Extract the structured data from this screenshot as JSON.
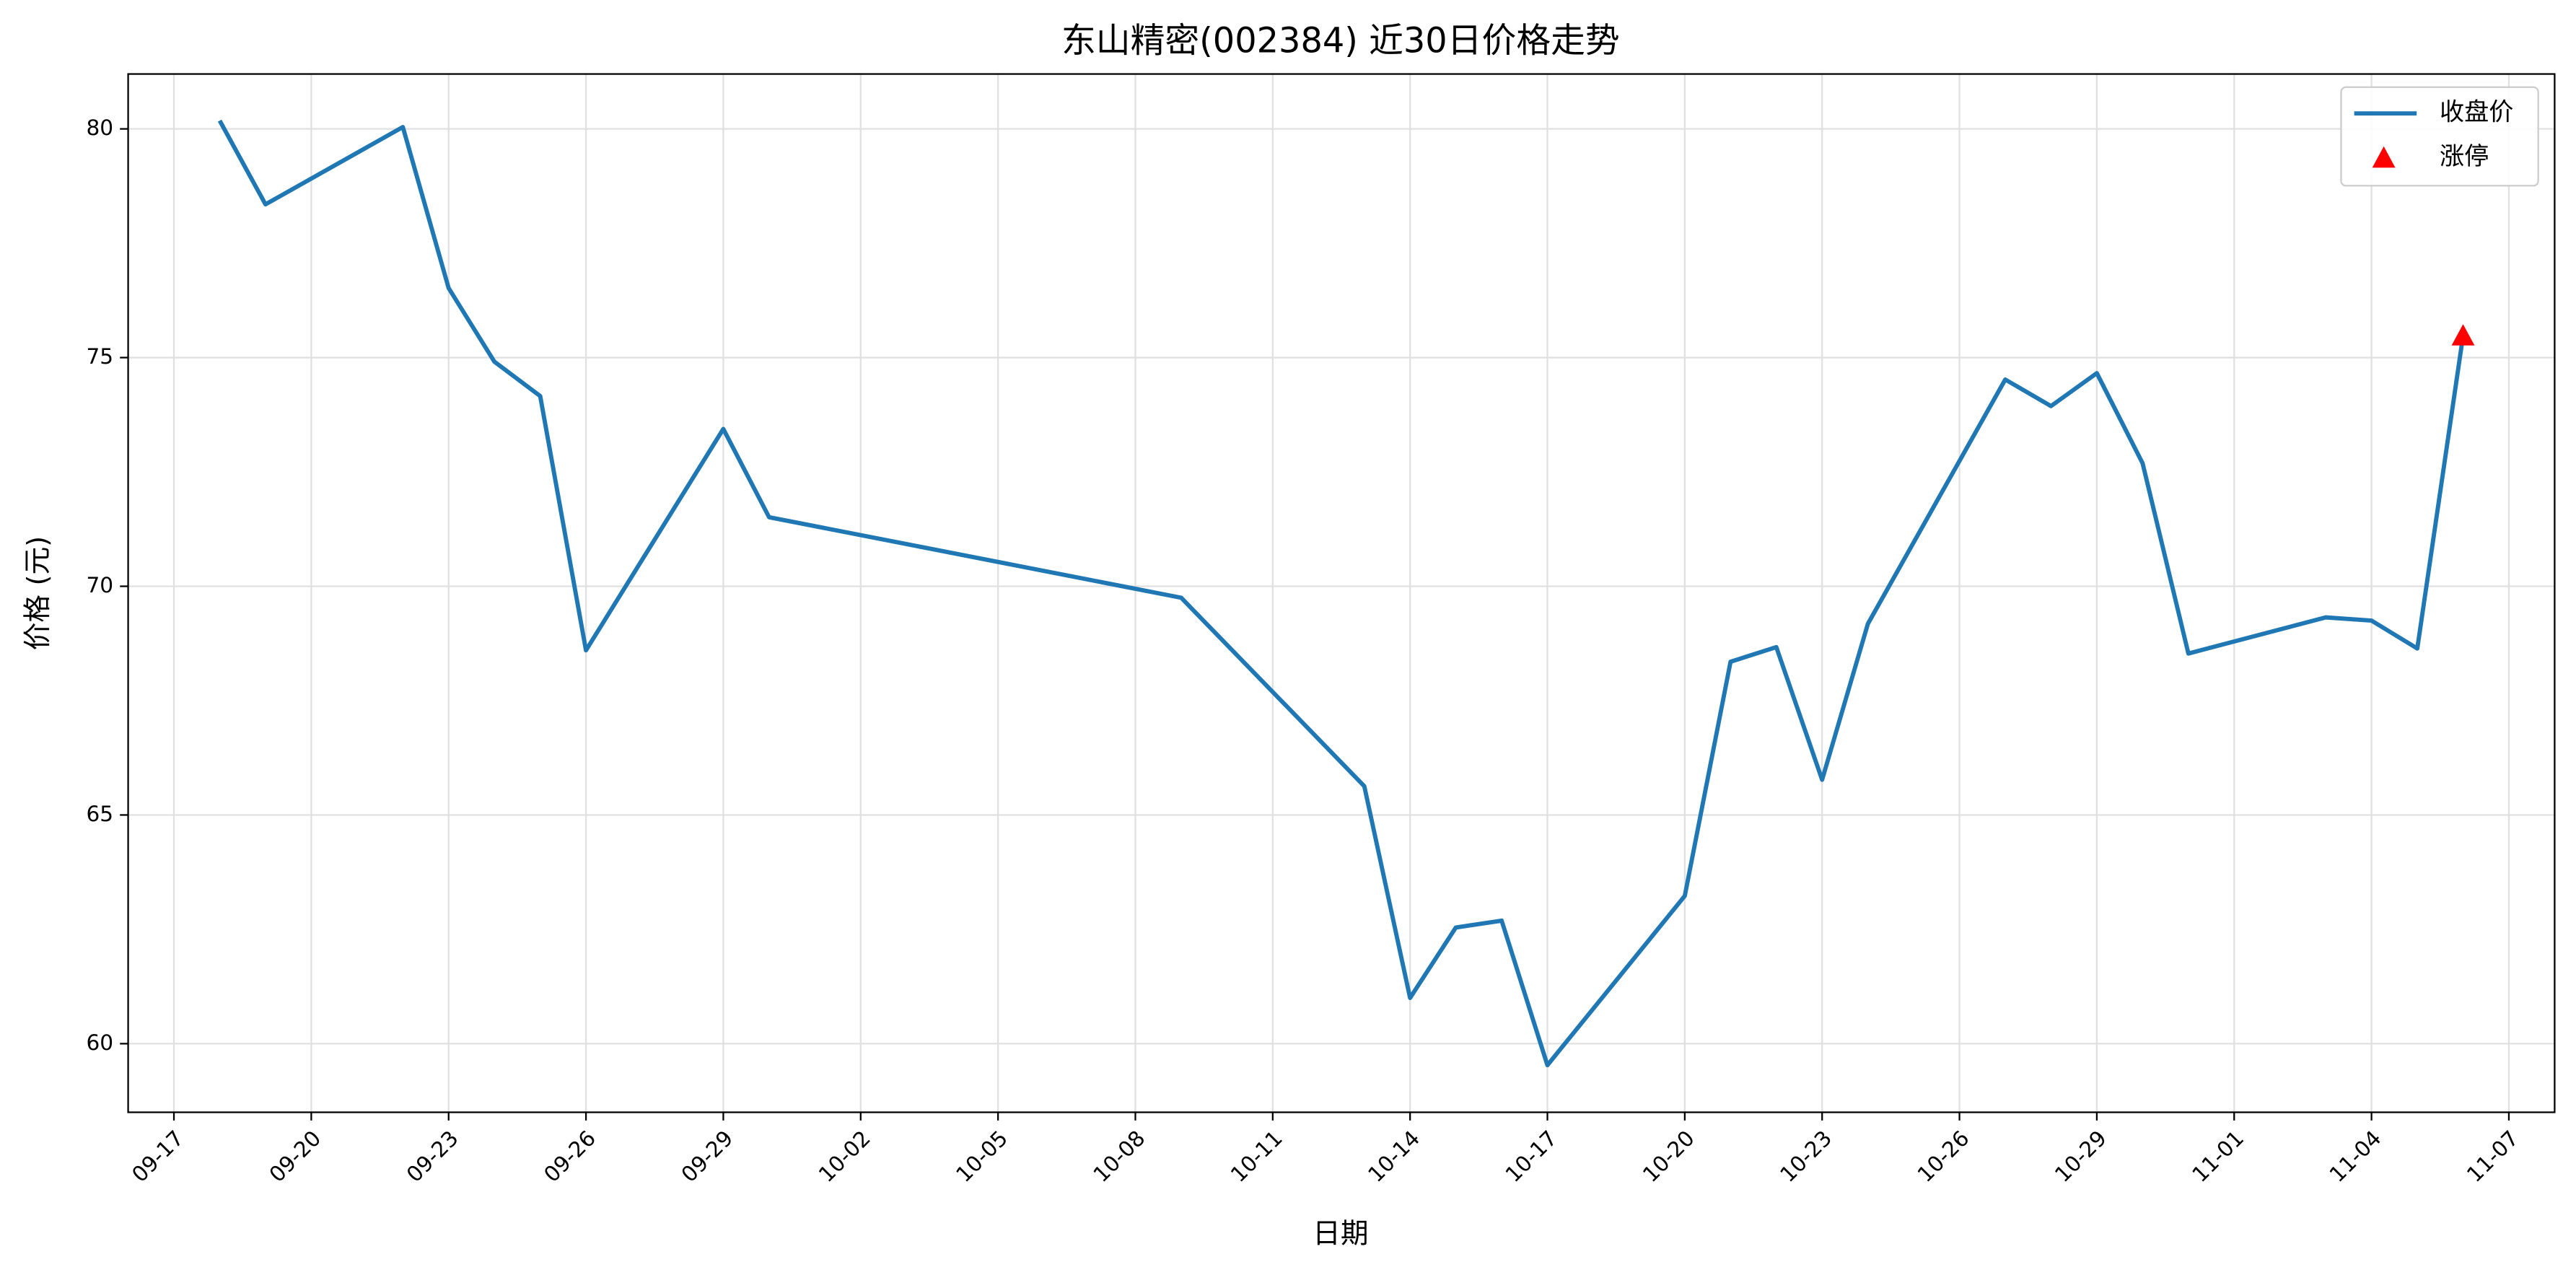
{
  "chart_data": {
    "type": "line",
    "title": "东山精密(002384) 近30日价格走势",
    "x_label": "日期",
    "y_label": "价格 (元)",
    "x": [
      "09-18",
      "09-19",
      "09-22",
      "09-23",
      "09-24",
      "09-25",
      "09-26",
      "09-29",
      "09-30",
      "10-09",
      "10-13",
      "10-14",
      "10-15",
      "10-16",
      "10-17",
      "10-20",
      "10-21",
      "10-22",
      "10-23",
      "10-24",
      "10-27",
      "10-28",
      "10-29",
      "10-30",
      "10-31",
      "11-03",
      "11-04",
      "11-05",
      "11-06"
    ],
    "series": [
      {
        "name": "收盘价",
        "color": "#1f77b4",
        "values": [
          80.18,
          78.35,
          80.04,
          76.52,
          74.91,
          74.16,
          68.6,
          73.44,
          71.51,
          69.75,
          65.63,
          61.0,
          62.54,
          62.69,
          59.53,
          63.23,
          68.35,
          68.67,
          65.77,
          69.18,
          74.52,
          73.94,
          74.66,
          72.69,
          68.53,
          69.32,
          69.25,
          68.64,
          75.48
        ]
      },
      {
        "name": "涨停",
        "color": "#ff0000",
        "marker": "triangle",
        "x": [
          "11-06"
        ],
        "values": [
          75.48
        ]
      }
    ],
    "xlim": [
      "09-16",
      "11-08"
    ],
    "xticks": [
      "09-17",
      "09-20",
      "09-23",
      "09-26",
      "09-29",
      "10-02",
      "10-05",
      "10-08",
      "10-11",
      "10-14",
      "10-17",
      "10-20",
      "10-23",
      "10-26",
      "10-29",
      "11-01",
      "11-04",
      "11-07"
    ],
    "ylim": [
      58.5,
      81.2
    ],
    "yticks": [
      60,
      65,
      70,
      75,
      80
    ],
    "grid": true,
    "legend": "upper right"
  }
}
